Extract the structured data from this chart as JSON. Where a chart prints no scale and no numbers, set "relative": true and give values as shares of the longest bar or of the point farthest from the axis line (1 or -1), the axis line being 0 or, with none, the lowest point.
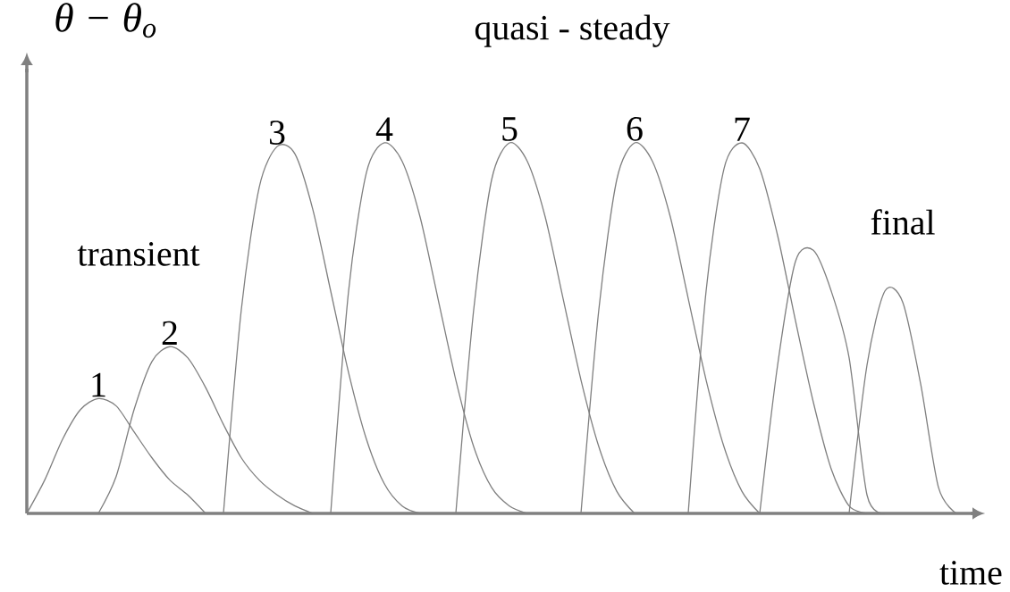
{
  "chart_data": {
    "type": "line",
    "relative": true,
    "xlabel": "time",
    "ylabel": "θ − θ$_{o}$",
    "annotations": [
      "quasi - steady",
      "transient",
      "final"
    ],
    "categories": [
      null,
      null,
      null,
      null,
      null,
      null,
      null,
      null,
      null,
      null,
      null,
      null,
      null,
      null,
      null,
      null,
      null,
      null,
      null,
      null,
      null,
      null,
      null,
      null,
      null,
      null,
      null,
      null,
      null,
      null,
      null,
      null,
      null,
      null,
      null,
      null,
      null,
      null,
      null,
      null,
      null,
      null,
      null,
      null,
      null,
      null,
      null,
      null,
      null,
      null,
      null,
      null,
      null,
      null
    ],
    "legend": false,
    "marker": "none",
    "line_style": "solid",
    "series": [
      {
        "name": "1",
        "color": "#7f7f7f",
        "values": [
          0,
          0.09,
          0.2,
          0.28,
          0.31,
          0.29,
          0.22,
          0.15,
          0.09,
          0.05,
          0,
          null,
          null,
          null,
          null,
          null,
          null,
          null,
          null,
          null,
          null,
          null,
          null,
          null,
          null,
          null,
          null,
          null,
          null,
          null,
          null,
          null,
          null,
          null,
          null,
          null,
          null,
          null,
          null,
          null,
          null,
          null,
          null,
          null,
          null,
          null,
          null,
          null,
          null,
          null,
          null,
          null,
          null,
          null
        ]
      },
      {
        "name": "2",
        "color": "#7f7f7f",
        "values": [
          null,
          null,
          null,
          null,
          0,
          0.1,
          0.28,
          0.41,
          0.45,
          0.42,
          0.34,
          0.24,
          0.15,
          0.09,
          0.05,
          0.02,
          0,
          null,
          null,
          null,
          null,
          null,
          null,
          null,
          null,
          null,
          null,
          null,
          null,
          null,
          null,
          null,
          null,
          null,
          null,
          null,
          null,
          null,
          null,
          null,
          null,
          null,
          null,
          null,
          null,
          null,
          null,
          null,
          null,
          null,
          null,
          null,
          null,
          null
        ]
      },
      {
        "name": "3",
        "color": "#7f7f7f",
        "values": [
          null,
          null,
          null,
          null,
          null,
          null,
          null,
          null,
          null,
          null,
          null,
          0,
          0.55,
          0.88,
          0.99,
          0.97,
          0.82,
          0.6,
          0.38,
          0.2,
          0.08,
          0.02,
          0,
          null,
          null,
          null,
          null,
          null,
          null,
          null,
          null,
          null,
          null,
          null,
          null,
          null,
          null,
          null,
          null,
          null,
          null,
          null,
          null,
          null,
          null,
          null,
          null,
          null,
          null,
          null,
          null,
          null,
          null,
          null
        ]
      },
      {
        "name": "4",
        "color": "#7f7f7f",
        "values": [
          null,
          null,
          null,
          null,
          null,
          null,
          null,
          null,
          null,
          null,
          null,
          null,
          null,
          null,
          null,
          null,
          null,
          0,
          0.6,
          0.92,
          1,
          0.95,
          0.8,
          0.58,
          0.36,
          0.18,
          0.07,
          0.02,
          0,
          null,
          null,
          null,
          null,
          null,
          null,
          null,
          null,
          null,
          null,
          null,
          null,
          null,
          null,
          null,
          null,
          null,
          null,
          null,
          null,
          null,
          null,
          null,
          null,
          null
        ]
      },
      {
        "name": "5",
        "color": "#7f7f7f",
        "values": [
          null,
          null,
          null,
          null,
          null,
          null,
          null,
          null,
          null,
          null,
          null,
          null,
          null,
          null,
          null,
          null,
          null,
          null,
          null,
          null,
          null,
          null,
          null,
          null,
          0,
          0.55,
          0.9,
          1,
          0.95,
          0.8,
          0.58,
          0.36,
          0.18,
          0.06,
          0,
          null,
          null,
          null,
          null,
          null,
          null,
          null,
          null,
          null,
          null,
          null,
          null,
          null,
          null,
          null,
          null,
          null,
          null,
          null
        ]
      },
      {
        "name": "6",
        "color": "#7f7f7f",
        "values": [
          null,
          null,
          null,
          null,
          null,
          null,
          null,
          null,
          null,
          null,
          null,
          null,
          null,
          null,
          null,
          null,
          null,
          null,
          null,
          null,
          null,
          null,
          null,
          null,
          null,
          null,
          null,
          null,
          null,
          null,
          null,
          0,
          0.55,
          0.9,
          1,
          0.95,
          0.8,
          0.58,
          0.36,
          0.18,
          0.06,
          0,
          null,
          null,
          null,
          null,
          null,
          null,
          null,
          null,
          null,
          null,
          null,
          null
        ]
      },
      {
        "name": "7",
        "color": "#7f7f7f",
        "values": [
          null,
          null,
          null,
          null,
          null,
          null,
          null,
          null,
          null,
          null,
          null,
          null,
          null,
          null,
          null,
          null,
          null,
          null,
          null,
          null,
          null,
          null,
          null,
          null,
          null,
          null,
          null,
          null,
          null,
          null,
          null,
          null,
          null,
          null,
          null,
          null,
          null,
          0,
          0.6,
          0.93,
          1,
          0.93,
          0.75,
          0.52,
          0.3,
          0.12,
          0.02,
          0,
          null,
          null,
          null,
          null,
          null,
          null
        ]
      },
      {
        "color": "#7f7f7f",
        "values": [
          null,
          null,
          null,
          null,
          null,
          null,
          null,
          null,
          null,
          null,
          null,
          null,
          null,
          null,
          null,
          null,
          null,
          null,
          null,
          null,
          null,
          null,
          null,
          null,
          null,
          null,
          null,
          null,
          null,
          null,
          null,
          null,
          null,
          null,
          null,
          null,
          null,
          null,
          null,
          null,
          null,
          0,
          0.4,
          0.68,
          0.71,
          0.6,
          0.42,
          0.05,
          0,
          null,
          null,
          null,
          null,
          null
        ]
      },
      {
        "color": "#7f7f7f",
        "values": [
          null,
          null,
          null,
          null,
          null,
          null,
          null,
          null,
          null,
          null,
          null,
          null,
          null,
          null,
          null,
          null,
          null,
          null,
          null,
          null,
          null,
          null,
          null,
          null,
          null,
          null,
          null,
          null,
          null,
          null,
          null,
          null,
          null,
          null,
          null,
          null,
          null,
          null,
          null,
          null,
          null,
          null,
          null,
          null,
          null,
          null,
          0,
          0.4,
          0.6,
          0.57,
          0.35,
          0.07,
          0,
          null
        ]
      }
    ]
  }
}
